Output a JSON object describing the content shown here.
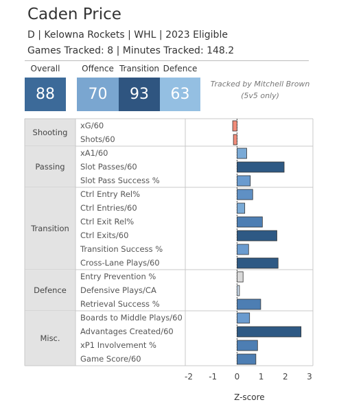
{
  "player": {
    "name": "Caden Price",
    "line1": "D | Kelowna Rockets | WHL | 2023 Eligible",
    "line2": "Games Tracked: 8 | Minutes Tracked: 148.2"
  },
  "scores": [
    {
      "label": "Overall",
      "value": "88",
      "color": "#3c6a99"
    },
    {
      "label": "Offence",
      "value": "70",
      "color": "#7aa6d0"
    },
    {
      "label": "Transition",
      "value": "93",
      "color": "#2f5580"
    },
    {
      "label": "Defence",
      "value": "63",
      "color": "#94bfe2"
    }
  ],
  "tracked_by": [
    "Tracked by Mitchell Brown",
    "(5v5 only)"
  ],
  "chart_data": {
    "type": "bar",
    "orientation": "horizontal",
    "xlabel": "Z-score",
    "xlim": [
      -2,
      3
    ],
    "xticks": [
      "-2",
      "-1",
      "0",
      "1",
      "2",
      "3"
    ],
    "colors": {
      "strong": "#2e5984",
      "medium": "#4d7eb3",
      "light": "#7aaad6",
      "neutral": "#d9d9d9",
      "negative": "#f08c7a"
    },
    "groups": [
      {
        "name": "Shooting",
        "metrics": [
          {
            "label": "xG/60",
            "value": -0.18,
            "color": "#f08c7a"
          },
          {
            "label": "Shots/60",
            "value": -0.15,
            "color": "#f08c7a"
          }
        ]
      },
      {
        "name": "Passing",
        "metrics": [
          {
            "label": "xA1/60",
            "value": 0.4,
            "color": "#7aaad6"
          },
          {
            "label": "Slot Passes/60",
            "value": 1.95,
            "color": "#2e5984"
          },
          {
            "label": "Slot Pass Success %",
            "value": 0.55,
            "color": "#6a9bcf"
          }
        ]
      },
      {
        "name": "Transition",
        "metrics": [
          {
            "label": "Ctrl Entry Rel%",
            "value": 0.65,
            "color": "#5f90c4"
          },
          {
            "label": "Ctrl Entries/60",
            "value": 0.32,
            "color": "#7aaad6"
          },
          {
            "label": "Ctrl Exit Rel%",
            "value": 1.05,
            "color": "#4d7eb3"
          },
          {
            "label": "Ctrl Exits/60",
            "value": 1.65,
            "color": "#2e5984"
          },
          {
            "label": "Transition Success %",
            "value": 0.48,
            "color": "#6a9bcf"
          },
          {
            "label": "Cross-Lane Plays/60",
            "value": 1.7,
            "color": "#2e5984"
          }
        ]
      },
      {
        "name": "Defence",
        "metrics": [
          {
            "label": "Entry Prevention %",
            "value": 0.25,
            "color": "#d9d9d9"
          },
          {
            "label": "Defensive Plays/CA",
            "value": 0.1,
            "color": "#c9d9ea"
          },
          {
            "label": "Retrieval Success %",
            "value": 0.98,
            "color": "#4d7eb3"
          }
        ]
      },
      {
        "name": "Misc.",
        "metrics": [
          {
            "label": "Boards to Middle Plays/60",
            "value": 0.52,
            "color": "#6a9bcf"
          },
          {
            "label": "Advantages Created/60",
            "value": 2.65,
            "color": "#2e5984"
          },
          {
            "label": "xP1 Involvement %",
            "value": 0.85,
            "color": "#4d7eb3"
          },
          {
            "label": "Game Score/60",
            "value": 0.78,
            "color": "#4d7eb3"
          }
        ]
      }
    ]
  }
}
